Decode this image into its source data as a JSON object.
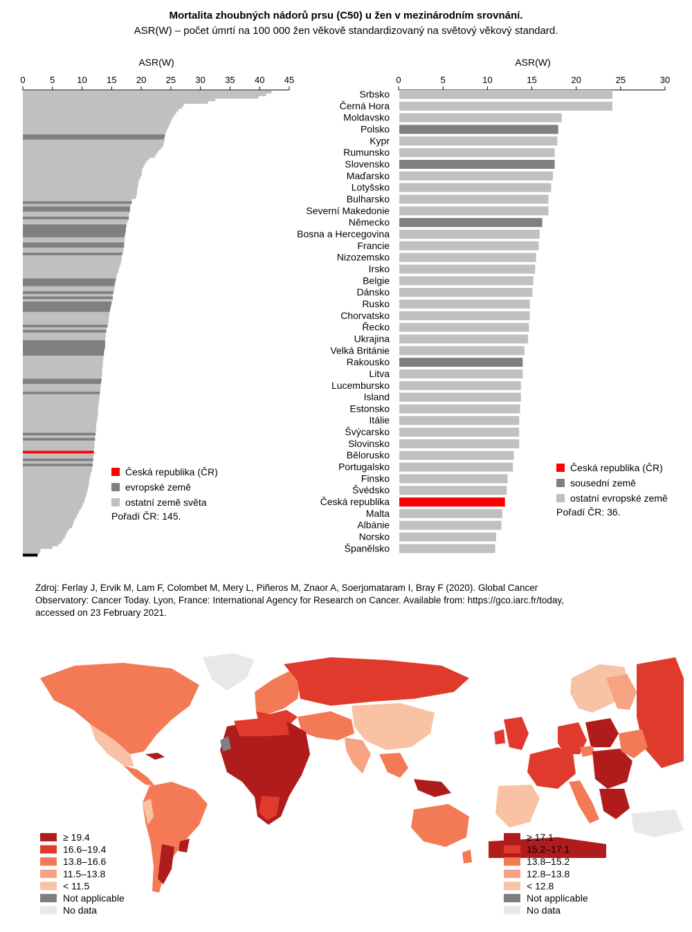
{
  "header": {
    "title": "Mortalita zhoubných nádorů prsu (C50) u žen v mezinárodním srovnání.",
    "subtitle": "ASR(W) – počet úmrtí na 100 000 žen věkově standardizovaný na světový věkový standard."
  },
  "colors": {
    "cz": "#ff0000",
    "highlight": "#808080",
    "other": "#c0c0c0",
    "map_scale": [
      "#b01c1c",
      "#e03a2c",
      "#f37a55",
      "#f7a283",
      "#f9c2a4",
      "#7f7f7f",
      "#e8e8e8"
    ]
  },
  "chart_data": [
    {
      "type": "bar",
      "orientation": "horizontal",
      "xlabel": "ASR(W)",
      "xlim": [
        0,
        45
      ],
      "xticks": [
        "0",
        "5",
        "10",
        "15",
        "20",
        "25",
        "30",
        "35",
        "40",
        "45"
      ],
      "values": [
        42.0,
        41.1,
        39.8,
        32.5,
        31.3,
        27.2,
        26.9,
        26.3,
        25.9,
        25.6,
        25.3,
        25.1,
        24.9,
        24.7,
        24.5,
        24.3,
        24.1,
        24.0,
        23.9,
        23.9,
        23.8,
        23.7,
        23.3,
        22.9,
        22.6,
        22.3,
        21.3,
        20.9,
        20.6,
        20.4,
        20.2,
        20.1,
        20.1,
        19.9,
        19.7,
        19.5,
        19.5,
        19.4,
        19.3,
        19.3,
        19.2,
        19.1,
        18.4,
        18.4,
        18.2,
        18.1,
        18.1,
        18.0,
        17.9,
        17.9,
        17.8,
        17.6,
        17.5,
        17.4,
        17.4,
        17.3,
        17.2,
        17.2,
        17.2,
        17.1,
        17.1,
        17.0,
        17.0,
        16.8,
        16.7,
        16.7,
        16.6,
        16.5,
        16.3,
        16.2,
        16.1,
        15.9,
        15.8,
        15.7,
        15.6,
        15.5,
        15.5,
        15.4,
        15.3,
        15.2,
        15.2,
        15.1,
        15.0,
        14.9,
        14.8,
        14.7,
        14.6,
        14.6,
        14.5,
        14.5,
        14.4,
        14.3,
        14.1,
        14.1,
        14.0,
        14.0,
        13.9,
        13.9,
        13.9,
        13.9,
        13.8,
        13.7,
        13.7,
        13.6,
        13.6,
        13.5,
        13.5,
        13.5,
        13.4,
        13.4,
        13.4,
        13.3,
        13.3,
        13.2,
        13.2,
        13.1,
        13.1,
        13.0,
        13.0,
        12.9,
        12.9,
        12.8,
        12.8,
        12.7,
        12.7,
        12.7,
        12.6,
        12.6,
        12.5,
        12.4,
        12.4,
        12.4,
        12.3,
        12.3,
        12.2,
        12.2,
        12.1,
        12.1,
        12.1,
        12.0,
        12.0,
        12.0,
        11.9,
        11.9,
        11.8,
        11.8,
        11.7,
        11.7,
        11.5,
        11.4,
        11.3,
        11.2,
        11.2,
        11.1,
        11.0,
        10.9,
        10.8,
        10.7,
        10.5,
        10.4,
        10.2,
        10.0,
        9.8,
        9.5,
        9.3,
        9.1,
        8.8,
        8.6,
        8.5,
        8.3,
        7.8,
        7.5,
        7.3,
        7.1,
        6.8,
        6.5,
        6.0,
        5.0,
        3.0,
        2.8,
        2.5
      ],
      "series_codes": [
        0,
        0,
        0,
        0,
        0,
        0,
        0,
        0,
        0,
        0,
        0,
        0,
        0,
        0,
        0,
        0,
        0,
        1,
        1,
        0,
        0,
        0,
        0,
        0,
        0,
        0,
        0,
        0,
        0,
        0,
        0,
        0,
        0,
        0,
        0,
        0,
        0,
        0,
        0,
        0,
        0,
        0,
        0,
        1,
        0,
        1,
        1,
        0,
        0,
        1,
        0,
        0,
        1,
        1,
        1,
        1,
        1,
        0,
        0,
        1,
        1,
        0,
        0,
        1,
        0,
        0,
        0,
        0,
        0,
        0,
        0,
        0,
        0,
        1,
        1,
        1,
        0,
        0,
        1,
        0,
        1,
        0,
        1,
        1,
        1,
        1,
        0,
        0,
        0,
        0,
        0,
        1,
        0,
        1,
        0,
        0,
        0,
        1,
        1,
        1,
        1,
        1,
        1,
        0,
        0,
        0,
        0,
        0,
        0,
        0,
        0,
        0,
        1,
        1,
        0,
        0,
        0,
        1,
        0,
        0,
        0,
        0,
        0,
        0,
        0,
        0,
        0,
        0,
        0,
        0,
        0,
        0,
        0,
        1,
        0,
        1,
        0,
        0,
        0,
        0,
        2,
        0,
        0,
        1,
        0,
        1,
        0,
        0,
        0,
        0,
        0,
        0,
        0,
        0,
        0,
        0,
        0,
        0,
        0,
        0,
        0,
        0,
        0,
        0,
        0,
        0,
        0,
        0,
        0,
        0,
        0,
        0,
        0,
        0,
        0,
        0,
        0,
        0,
        0,
        0
      ],
      "legend": [
        {
          "label": "Česká republika (ČR)",
          "color": "#ff0000"
        },
        {
          "label": "evropské země",
          "color": "#808080"
        },
        {
          "label": "ostatní země světa",
          "color": "#c0c0c0"
        }
      ],
      "rank_note": "Pořadí ČR: 145."
    },
    {
      "type": "bar",
      "orientation": "horizontal",
      "xlabel": "ASR(W)",
      "xlim": [
        0,
        30
      ],
      "xticks": [
        "0",
        "5",
        "10",
        "15",
        "20",
        "25",
        "30"
      ],
      "categories": [
        "Srbsko",
        "Černá Hora",
        "Moldavsko",
        "Polsko",
        "Kypr",
        "Rumunsko",
        "Slovensko",
        "Maďarsko",
        "Lotyšsko",
        "Bulharsko",
        "Severní Makedonie",
        "Německo",
        "Bosna a Hercegovina",
        "Francie",
        "Nizozemsko",
        "Irsko",
        "Belgie",
        "Dánsko",
        "Rusko",
        "Chorvatsko",
        "Řecko",
        "Ukrajina",
        "Velká Británie",
        "Rakousko",
        "Litva",
        "Lucembursko",
        "Island",
        "Estonsko",
        "Itálie",
        "Švýcarsko",
        "Slovinsko",
        "Bělorusko",
        "Portugalsko",
        "Finsko",
        "Švédsko",
        "Česká republika",
        "Malta",
        "Albánie",
        "Norsko",
        "Španělsko"
      ],
      "values": [
        24.0,
        24.0,
        18.3,
        17.9,
        17.8,
        17.5,
        17.5,
        17.3,
        17.1,
        16.8,
        16.8,
        16.1,
        15.8,
        15.7,
        15.4,
        15.3,
        15.1,
        15.0,
        14.7,
        14.7,
        14.6,
        14.5,
        14.1,
        13.9,
        13.9,
        13.7,
        13.7,
        13.6,
        13.5,
        13.5,
        13.5,
        12.9,
        12.8,
        12.2,
        12.1,
        11.9,
        11.6,
        11.5,
        10.9,
        10.8
      ],
      "series_codes": [
        0,
        0,
        0,
        1,
        0,
        0,
        1,
        0,
        0,
        0,
        0,
        1,
        0,
        0,
        0,
        0,
        0,
        0,
        0,
        0,
        0,
        0,
        0,
        1,
        0,
        0,
        0,
        0,
        0,
        0,
        0,
        0,
        0,
        0,
        0,
        2,
        0,
        0,
        0,
        0
      ],
      "legend": [
        {
          "label": "Česká republika (ČR)",
          "color": "#ff0000"
        },
        {
          "label": "sousední země",
          "color": "#808080"
        },
        {
          "label": "ostatní evropské země",
          "color": "#c0c0c0"
        }
      ],
      "rank_note": "Pořadí ČR: 36."
    }
  ],
  "source": {
    "lines": [
      "Zdroj: Ferlay J, Ervik M, Lam F, Colombet M, Mery L, Piñeros M, Znaor A, Soerjomataram I, Bray F (2020). Global Cancer",
      "Observatory: Cancer Today. Lyon, France: International Agency for Research on Cancer. Available from: https://gco.iarc.fr/today,",
      "accessed on 23 February 2021."
    ]
  },
  "maps": {
    "world": {
      "legend": [
        "≥ 19.4",
        "16.6–19.4",
        "13.8–16.6",
        "11.5–13.8",
        "< 11.5",
        "Not applicable",
        "No data"
      ]
    },
    "europe": {
      "legend": [
        "≥ 17.1",
        "15.2–17.1",
        "13.8–15.2",
        "12.8–13.8",
        "< 12.8",
        "Not applicable",
        "No data"
      ]
    }
  }
}
